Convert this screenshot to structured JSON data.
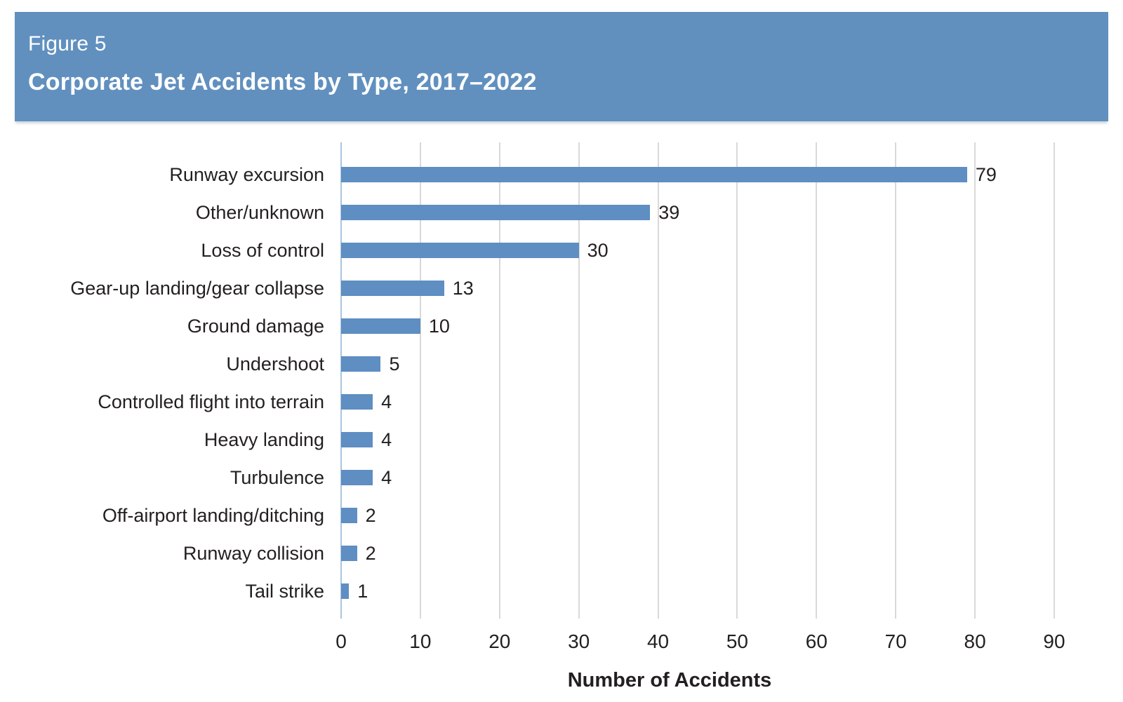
{
  "header": {
    "figure_label": "Figure 5",
    "title": "Corporate Jet Accidents by Type, 2017–2022"
  },
  "chart_data": {
    "type": "bar",
    "orientation": "horizontal",
    "title": "Corporate Jet Accidents by Type, 2017–2022",
    "categories": [
      "Runway excursion",
      "Other/unknown",
      "Loss of control",
      "Gear-up landing/gear collapse",
      "Ground damage",
      "Undershoot",
      "Controlled flight into terrain",
      "Heavy landing",
      "Turbulence",
      "Off-airport landing/ditching",
      "Runway collision",
      "Tail strike"
    ],
    "values": [
      79,
      39,
      30,
      13,
      10,
      5,
      4,
      4,
      4,
      2,
      2,
      1
    ],
    "data_labels": [
      "79",
      "39",
      "30",
      "13",
      "10",
      "5",
      "4",
      "4",
      "4",
      "2",
      "2",
      "1"
    ],
    "xlabel": "Number of Accidents",
    "ylabel": "",
    "xlim": [
      0,
      90
    ],
    "xticks": [
      0,
      10,
      20,
      30,
      40,
      50,
      60,
      70,
      80,
      90
    ],
    "grid": "vertical",
    "legend": "none",
    "colors": {
      "bar": "#5e8ec2",
      "header_banner": "#6190bf",
      "header_text": "#ffffff",
      "gridline": "#d9d9d9",
      "zero_axis_line": "#a9c6e1",
      "text": "#231f20"
    }
  }
}
